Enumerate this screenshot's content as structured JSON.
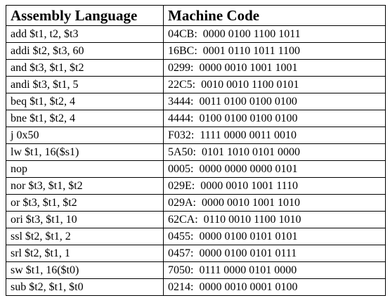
{
  "table": {
    "headers": [
      "Assembly Language",
      "Machine Code"
    ],
    "rows": [
      [
        "add $t1, t2, $t3",
        "04CB:  0000 0100 1100 1011"
      ],
      [
        "addi $t2, $t3, 60",
        "16BC:  0001 0110 1011 1100"
      ],
      [
        "and $t3, $t1, $t2",
        "0299:  0000 0010 1001 1001"
      ],
      [
        "andi $t3, $t1, 5",
        "22C5:  0010 0010 1100 0101"
      ],
      [
        "beq $t1, $t2, 4",
        "3444:  0011 0100 0100 0100"
      ],
      [
        "bne $t1, $t2, 4",
        "4444:  0100 0100 0100 0100"
      ],
      [
        "j 0x50",
        "F032:  1111 0000 0011 0010"
      ],
      [
        "lw $t1, 16($s1)",
        "5A50:  0101 1010 0101 0000"
      ],
      [
        "nop",
        "0005:  0000 0000 0000 0101"
      ],
      [
        "nor $t3, $t1, $t2",
        "029E:  0000 0010 1001 1110"
      ],
      [
        "or $t3, $t1, $t2",
        "029A:  0000 0010 1001 1010"
      ],
      [
        "ori $t3, $t1, 10",
        "62CA:  0110 0010 1100 1010"
      ],
      [
        "ssl $t2, $t1, 2",
        "0455:  0000 0100 0101 0101"
      ],
      [
        "srl $t2, $t1, 1",
        "0457:  0000 0100 0101 0111"
      ],
      [
        "sw $t1, 16($t0)",
        "7050:  0111 0000 0101 0000"
      ],
      [
        "sub $t2, $t1, $t0",
        "0214:  0000 0010 0001 0100"
      ]
    ]
  }
}
